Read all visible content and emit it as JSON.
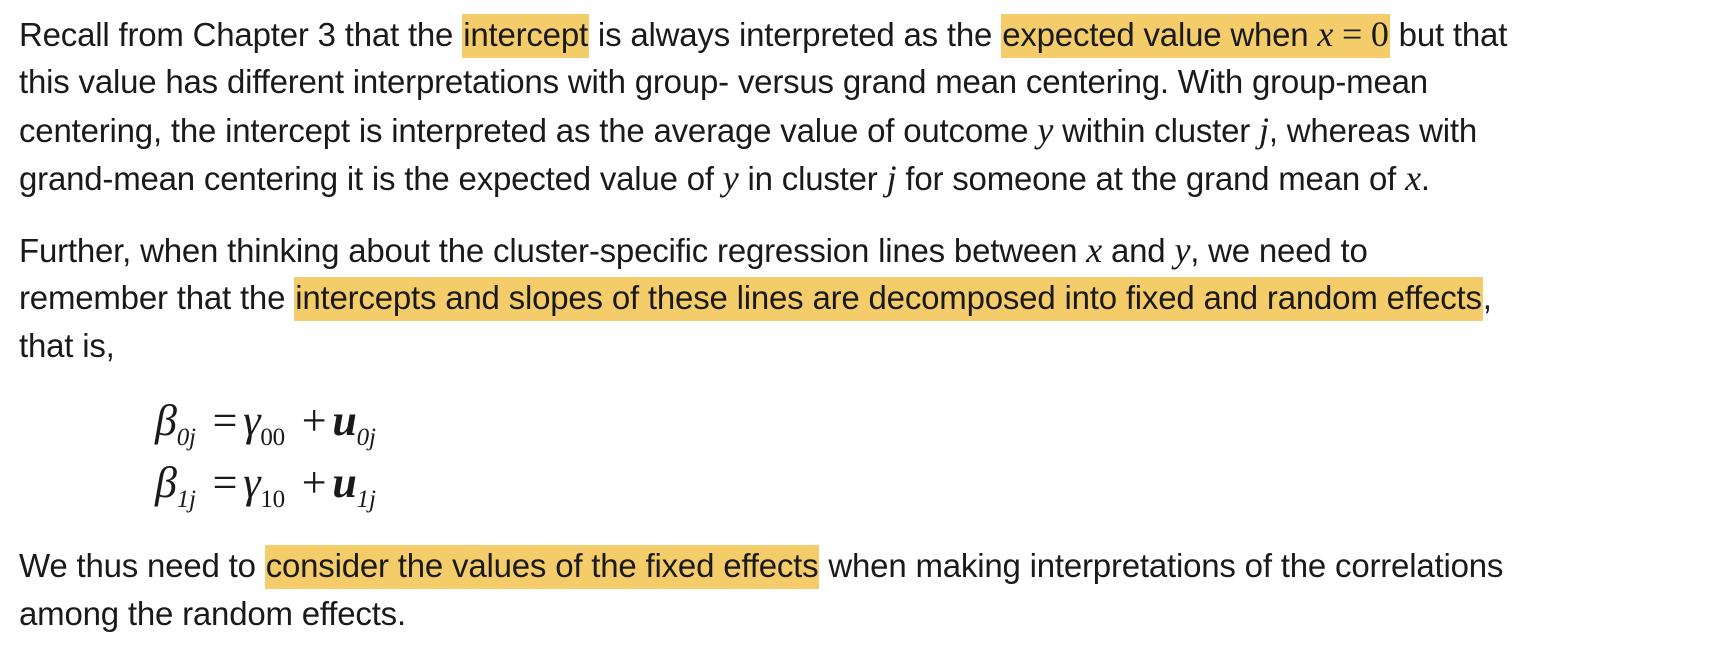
{
  "paragraph1": {
    "l1_a": "Recall from Chapter 3 that the ",
    "l1_hl1": "intercept",
    "l1_b": " is always interpreted as the ",
    "l1_hl2_text": "expected value when ",
    "l1_hl2_var": "x",
    "l1_hl2_eq": " = 0",
    "l1_c": " but that",
    "l2": "this value has different interpretations with group- versus grand mean centering.  With group-mean",
    "l3_a": "centering, the intercept is interpreted as the average value of outcome ",
    "l3_var1": "y",
    "l3_b": " within cluster ",
    "l3_var2": "j",
    "l3_c": ", whereas with",
    "l4_a": "grand-mean centering it is the expected value of ",
    "l4_var1": "y",
    "l4_b": " in cluster ",
    "l4_var2": "j",
    "l4_c": " for someone at the grand mean of ",
    "l4_var3": "x",
    "l4_d": "."
  },
  "paragraph2": {
    "l1_a": "Further, when thinking about the cluster-specific regression lines between ",
    "l1_var1": "x",
    "l1_b": " and ",
    "l1_var2": "y",
    "l1_c": ", we need to",
    "l2_a": "remember that the ",
    "l2_hl": "intercepts and slopes of these lines are decomposed into fixed and random effects",
    "l2_b": ",",
    "l3": "that is,"
  },
  "equations": [
    {
      "lhs": "β",
      "lhs_sub": "0j",
      "eq": "=",
      "gamma": "γ",
      "gamma_sub": "00",
      "plus": "+",
      "u": "u",
      "u_sub": "0j"
    },
    {
      "lhs": "β",
      "lhs_sub": "1j",
      "eq": "=",
      "gamma": "γ",
      "gamma_sub": "10",
      "plus": "+",
      "u": "u",
      "u_sub": "1j"
    }
  ],
  "paragraph3": {
    "l1_a": "We thus need to ",
    "l1_hl": "consider the values of the fixed effects",
    "l1_b": " when making interpretations of the correlations",
    "l2": "among the random effects."
  },
  "colors": {
    "highlight": "#f4cd6a",
    "text": "#1a1a1a"
  }
}
